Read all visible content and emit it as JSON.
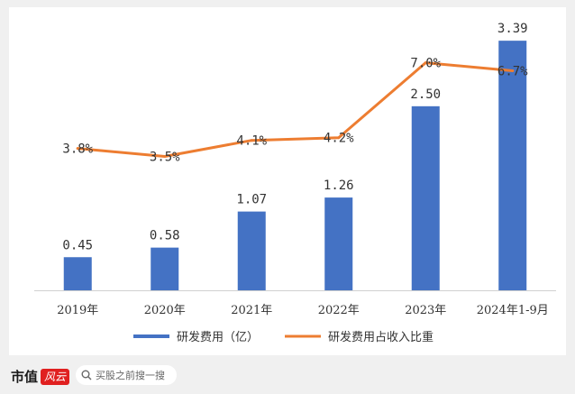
{
  "chart_data": {
    "type": "bar+line",
    "categories": [
      "2019年",
      "2020年",
      "2021年",
      "2022年",
      "2023年",
      "2024年1-9月"
    ],
    "series": [
      {
        "name": "研发费用（亿）",
        "type": "bar",
        "values": [
          0.45,
          0.58,
          1.07,
          1.26,
          2.5,
          3.39
        ],
        "labels": [
          "0.45",
          "0.58",
          "1.07",
          "1.26",
          "2.50",
          "3.39"
        ],
        "color": "#4472C4"
      },
      {
        "name": "研发费用占收入比重",
        "type": "line",
        "values": [
          3.8,
          3.5,
          4.1,
          4.2,
          7.0,
          6.7
        ],
        "labels": [
          "3.8%",
          "3.5%",
          "4.1%",
          "4.2%",
          "7.0%",
          "6.7%"
        ],
        "color": "#ED7D31"
      }
    ],
    "bar_ylim": [
      0,
      3.6
    ],
    "line_ylim": [
      -1.5,
      8.4
    ],
    "legend_position": "bottom",
    "grid": false
  },
  "footer": {
    "brand_text": "市值",
    "brand_badge": "风云",
    "search_text": "买股之前搜一搜"
  }
}
